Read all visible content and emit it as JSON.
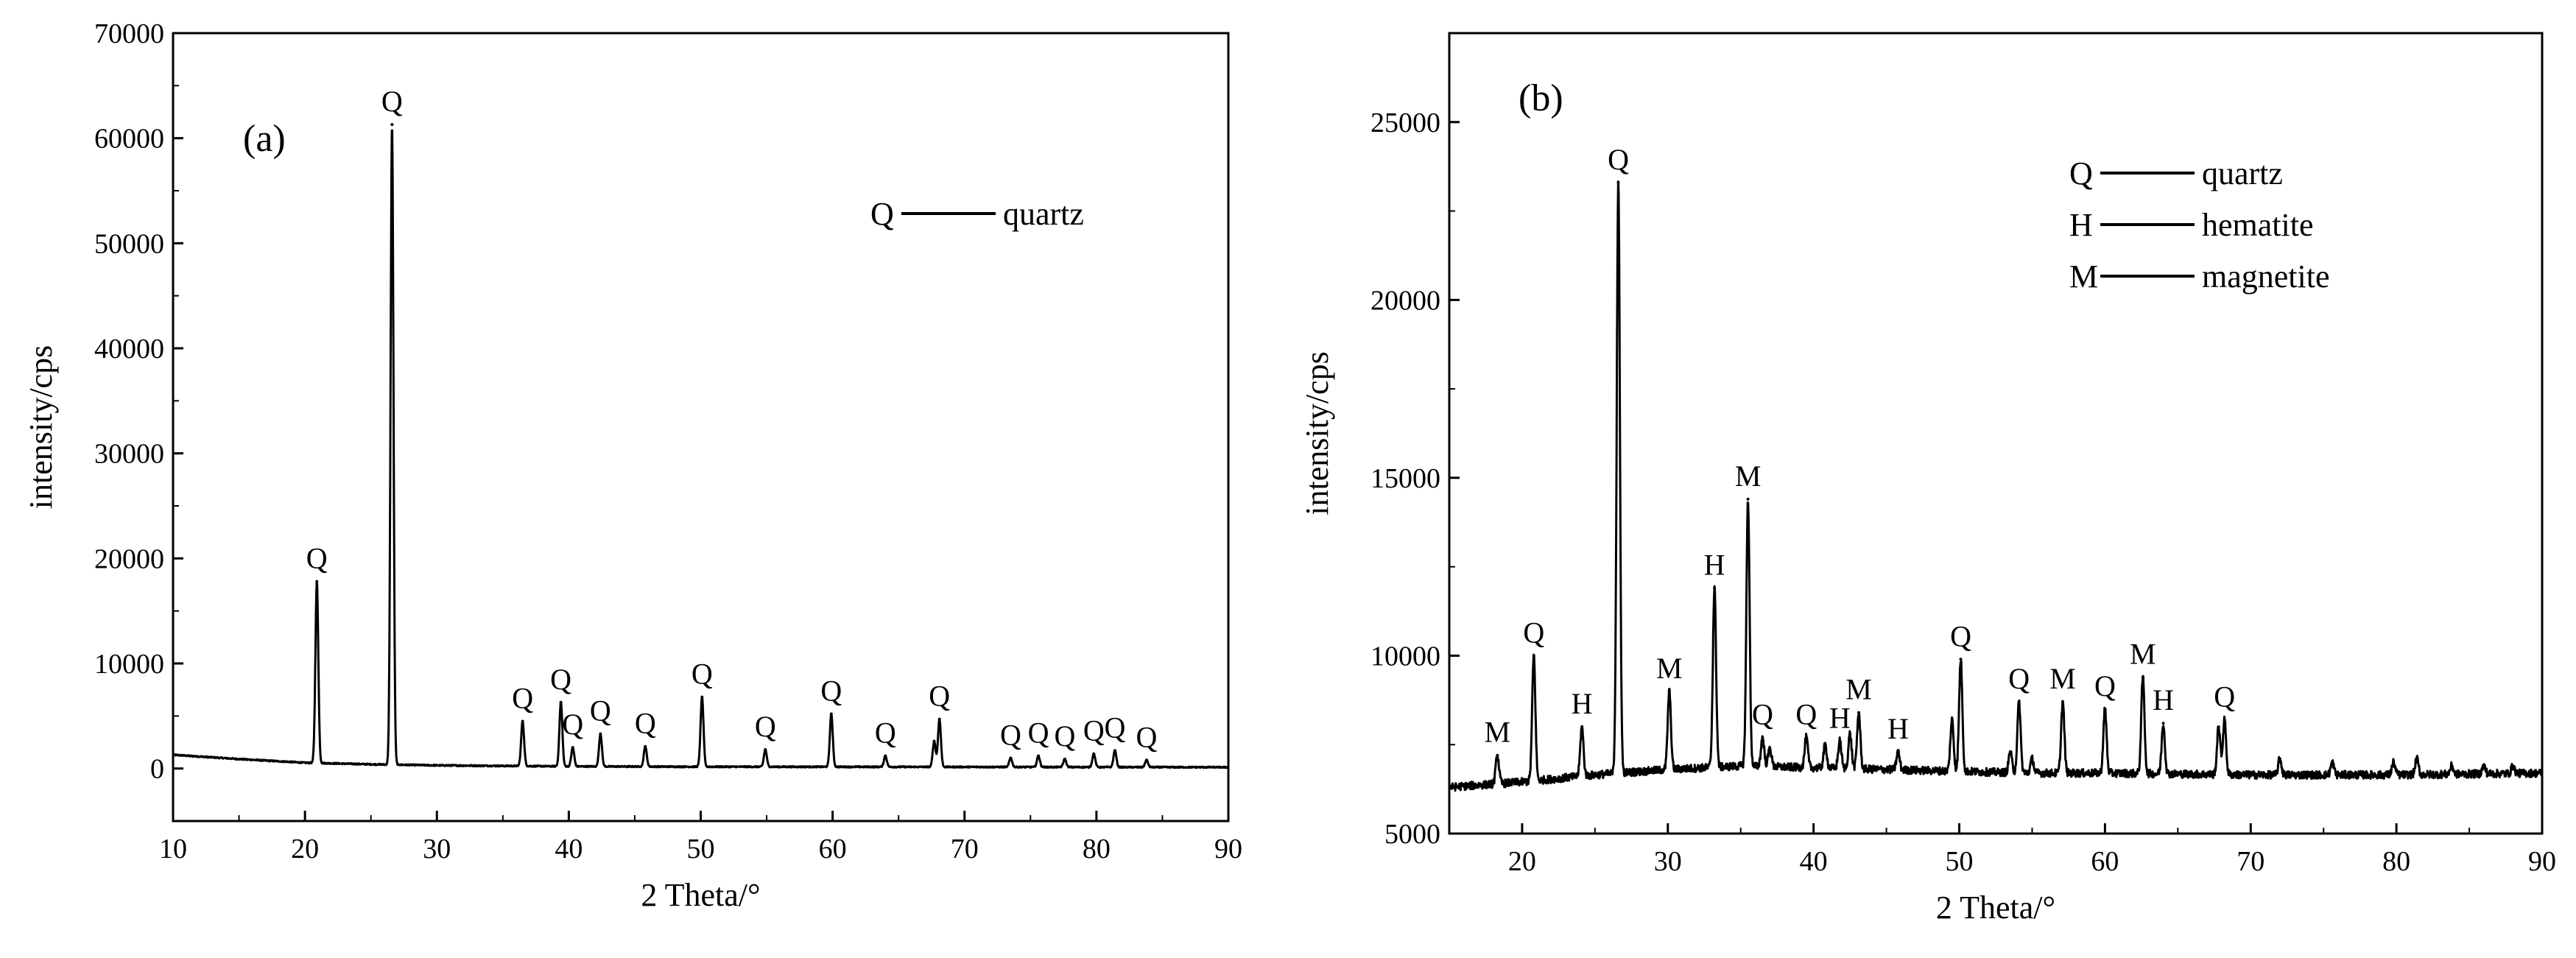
{
  "chart_data": [
    {
      "type": "line",
      "panel_label": "(a)",
      "xlabel": "2 Theta/°",
      "ylabel": "intensity/cps",
      "xlim": [
        10,
        90
      ],
      "ylim": [
        -5000,
        70000
      ],
      "xticks": [
        10,
        20,
        30,
        40,
        50,
        60,
        70,
        80,
        90
      ],
      "yticks": [
        0,
        10000,
        20000,
        30000,
        40000,
        50000,
        60000,
        70000
      ],
      "grid": false,
      "legend": {
        "position": "top-right",
        "entries": [
          {
            "key": "Q",
            "name": "quartz"
          }
        ]
      },
      "baseline": [
        [
          10,
          1300
        ],
        [
          15,
          900
        ],
        [
          20,
          550
        ],
        [
          25,
          400
        ],
        [
          30,
          300
        ],
        [
          40,
          200
        ],
        [
          50,
          170
        ],
        [
          60,
          160
        ],
        [
          70,
          150
        ],
        [
          80,
          130
        ],
        [
          90,
          120
        ]
      ],
      "peaks": [
        {
          "x": 20.9,
          "y": 17800,
          "label": "Q"
        },
        {
          "x": 26.6,
          "y": 61300,
          "label": "Q"
        },
        {
          "x": 36.5,
          "y": 4500,
          "label": "Q"
        },
        {
          "x": 39.4,
          "y": 6300,
          "label": "Q"
        },
        {
          "x": 40.3,
          "y": 2000,
          "label": "Q"
        },
        {
          "x": 42.4,
          "y": 3300,
          "label": "Q"
        },
        {
          "x": 45.8,
          "y": 2100,
          "label": "Q"
        },
        {
          "x": 50.1,
          "y": 6800,
          "label": "Q"
        },
        {
          "x": 54.9,
          "y": 1800,
          "label": "Q"
        },
        {
          "x": 59.9,
          "y": 5200,
          "label": "Q"
        },
        {
          "x": 64.0,
          "y": 1200,
          "label": "Q"
        },
        {
          "x": 67.7,
          "y": 2600,
          "label": null
        },
        {
          "x": 68.1,
          "y": 4700,
          "label": "Q"
        },
        {
          "x": 73.5,
          "y": 1000,
          "label": "Q"
        },
        {
          "x": 75.6,
          "y": 1200,
          "label": "Q"
        },
        {
          "x": 77.6,
          "y": 900,
          "label": "Q"
        },
        {
          "x": 79.8,
          "y": 1400,
          "label": "Q"
        },
        {
          "x": 81.4,
          "y": 1700,
          "label": "Q"
        },
        {
          "x": 83.8,
          "y": 800,
          "label": "Q"
        }
      ]
    },
    {
      "type": "line",
      "panel_label": "(b)",
      "xlabel": "2 Theta/°",
      "ylabel": "intensity/cps",
      "xlim": [
        15,
        90
      ],
      "ylim": [
        5000,
        27500
      ],
      "xticks": [
        20,
        30,
        40,
        50,
        60,
        70,
        80,
        90
      ],
      "yticks": [
        5000,
        10000,
        15000,
        20000,
        25000
      ],
      "grid": false,
      "legend": {
        "position": "top-right",
        "entries": [
          {
            "key": "Q",
            "name": "quartz"
          },
          {
            "key": "H",
            "name": "hematite"
          },
          {
            "key": "M",
            "name": "magnetite"
          }
        ]
      },
      "baseline": [
        [
          15,
          6300
        ],
        [
          20,
          6450
        ],
        [
          25,
          6650
        ],
        [
          30,
          6800
        ],
        [
          35,
          6900
        ],
        [
          40,
          6850
        ],
        [
          45,
          6800
        ],
        [
          50,
          6750
        ],
        [
          55,
          6700
        ],
        [
          60,
          6700
        ],
        [
          70,
          6650
        ],
        [
          80,
          6650
        ],
        [
          90,
          6700
        ]
      ],
      "peaks": [
        {
          "x": 18.3,
          "y": 7200,
          "label": "M"
        },
        {
          "x": 20.8,
          "y": 10000,
          "label": "Q"
        },
        {
          "x": 24.1,
          "y": 8000,
          "label": "H"
        },
        {
          "x": 26.6,
          "y": 23300,
          "label": "Q"
        },
        {
          "x": 30.1,
          "y": 9000,
          "label": "M"
        },
        {
          "x": 33.2,
          "y": 11900,
          "label": "H"
        },
        {
          "x": 35.5,
          "y": 14400,
          "label": "M"
        },
        {
          "x": 36.5,
          "y": 7700,
          "label": "Q"
        },
        {
          "x": 37.0,
          "y": 7400,
          "label": null
        },
        {
          "x": 39.5,
          "y": 7700,
          "label": "Q"
        },
        {
          "x": 40.8,
          "y": 7500,
          "label": null
        },
        {
          "x": 41.8,
          "y": 7600,
          "label": "H"
        },
        {
          "x": 42.5,
          "y": 7800,
          "label": null
        },
        {
          "x": 43.1,
          "y": 8400,
          "label": "M"
        },
        {
          "x": 45.8,
          "y": 7300,
          "label": "H"
        },
        {
          "x": 49.5,
          "y": 8200,
          "label": null
        },
        {
          "x": 50.1,
          "y": 9900,
          "label": "Q"
        },
        {
          "x": 53.5,
          "y": 7300,
          "label": null
        },
        {
          "x": 54.1,
          "y": 8700,
          "label": "Q"
        },
        {
          "x": 55.0,
          "y": 7100,
          "label": null
        },
        {
          "x": 57.1,
          "y": 8700,
          "label": "M"
        },
        {
          "x": 60.0,
          "y": 8500,
          "label": "Q"
        },
        {
          "x": 62.6,
          "y": 9400,
          "label": "M"
        },
        {
          "x": 64.0,
          "y": 8100,
          "label": "H"
        },
        {
          "x": 67.8,
          "y": 8000,
          "label": null
        },
        {
          "x": 68.2,
          "y": 8200,
          "label": "Q"
        },
        {
          "x": 72.0,
          "y": 7100,
          "label": null
        },
        {
          "x": 75.6,
          "y": 7000,
          "label": null
        },
        {
          "x": 79.8,
          "y": 7000,
          "label": null
        },
        {
          "x": 81.4,
          "y": 7100,
          "label": null
        },
        {
          "x": 83.8,
          "y": 6900,
          "label": null
        },
        {
          "x": 86.0,
          "y": 6900,
          "label": null
        },
        {
          "x": 88.0,
          "y": 6900,
          "label": null
        }
      ]
    }
  ]
}
